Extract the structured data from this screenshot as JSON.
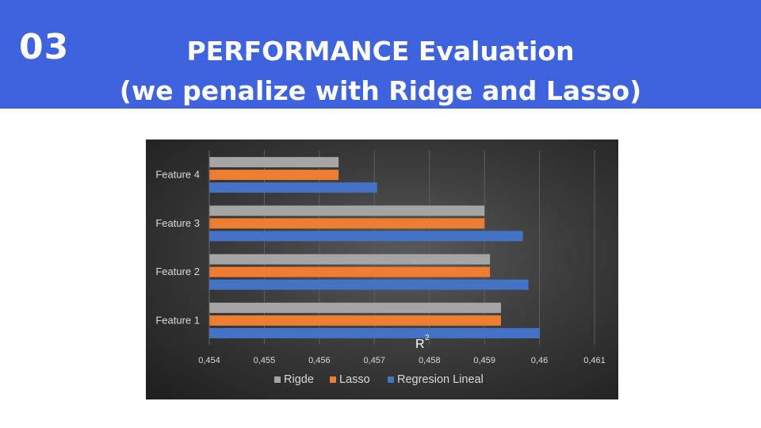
{
  "header": {
    "slide_number": "03",
    "title_line1": "PERFORMANCE Evaluation",
    "title_line2": "(we penalize with Ridge and Lasso)",
    "background_color": "#3f63dd"
  },
  "chart_data": {
    "type": "bar",
    "orientation": "horizontal",
    "categories": [
      "Feature 1",
      "Feature 2",
      "Feature 3",
      "Feature 4"
    ],
    "series": [
      {
        "name": "Ridge",
        "color": "#a5a5a5",
        "values": [
          0.4593,
          0.4591,
          0.459,
          0.45635
        ]
      },
      {
        "name": "Lasso",
        "color": "#ed7d31",
        "values": [
          0.4593,
          0.4591,
          0.459,
          0.45635
        ]
      },
      {
        "name": "Regresion Lineal",
        "color": "#4472c4",
        "values": [
          0.46,
          0.4598,
          0.4597,
          0.45705
        ]
      }
    ],
    "legend_labels": [
      "Rigde",
      "Lasso",
      "Regresion Lineal"
    ],
    "legend_position": "bottom",
    "xlim": [
      0.454,
      0.461
    ],
    "x_ticks": [
      0.454,
      0.455,
      0.456,
      0.457,
      0.458,
      0.459,
      0.46,
      0.461
    ],
    "x_tick_labels": [
      "0,454",
      "0,455",
      "0,456",
      "0,457",
      "0,458",
      "0,459",
      "0,46",
      "0,461"
    ],
    "xlabel": "R",
    "xlabel_superscript": "2",
    "grid": true,
    "background": "dark"
  }
}
